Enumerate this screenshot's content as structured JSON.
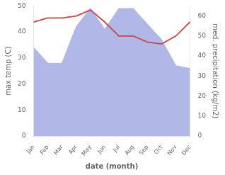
{
  "chart_data": {
    "type": "line",
    "categories": [
      "Jan",
      "Feb",
      "Mar",
      "Apr",
      "May",
      "Jun",
      "Jul",
      "Aug",
      "Sep",
      "Oct",
      "Nov",
      "Dec"
    ],
    "xlabel": "date (month)",
    "ylabel": "max temp (C)",
    "y2label": "med. precipitation (kg/m2)",
    "series": [
      {
        "type": "area",
        "color": "#b0b8e8",
        "values": [
          34,
          28,
          28,
          42,
          49,
          41,
          49,
          49,
          43,
          37,
          27,
          26
        ]
      },
      {
        "type": "line",
        "color": "#cc4444",
        "axis": "y2",
        "values": [
          57,
          59,
          59,
          60,
          63,
          57,
          50,
          50,
          47,
          46,
          50,
          57
        ]
      }
    ],
    "ylim": [
      0,
      50
    ],
    "yticks": [
      0,
      10,
      20,
      30,
      40,
      50
    ],
    "y2lim": [
      0,
      65
    ],
    "y2ticks": [
      0,
      10,
      20,
      30,
      40,
      50,
      60
    ],
    "grid": false
  }
}
